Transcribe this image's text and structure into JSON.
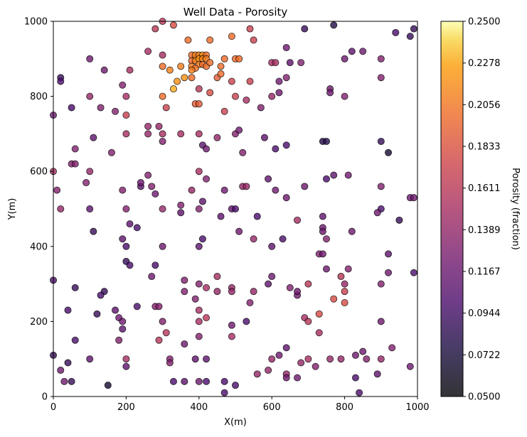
{
  "chart_data": {
    "type": "scatter",
    "title": "Well Data - Porosity",
    "xlabel": "X(m)",
    "ylabel": "Y(m)",
    "xlim": [
      0,
      1000
    ],
    "ylim": [
      0,
      1000
    ],
    "xticks": [
      "0",
      "200",
      "400",
      "600",
      "800",
      "1000"
    ],
    "yticks": [
      "0",
      "200",
      "400",
      "600",
      "800",
      "1000"
    ],
    "grid": false,
    "colormap": "inferno",
    "colorbar": {
      "label": "Porosity (fraction)",
      "range": [
        0.05,
        0.25
      ],
      "ticks": [
        "0.0500",
        "0.0722",
        "0.0944",
        "0.1167",
        "0.1389",
        "0.1611",
        "0.1833",
        "0.2056",
        "0.2278",
        "0.2500"
      ]
    },
    "points_columns": [
      "x",
      "y",
      "porosity"
    ],
    "points": [
      [
        280,
        980,
        0.16
      ],
      [
        300,
        1000,
        0.16
      ],
      [
        330,
        990,
        0.18
      ],
      [
        370,
        950,
        0.2
      ],
      [
        430,
        950,
        0.2
      ],
      [
        490,
        960,
        0.2
      ],
      [
        540,
        980,
        0.17
      ],
      [
        550,
        950,
        0.17
      ],
      [
        650,
        890,
        0.11
      ],
      [
        690,
        980,
        0.09
      ],
      [
        770,
        990,
        0.08
      ],
      [
        820,
        920,
        0.11
      ],
      [
        850,
        920,
        0.12
      ],
      [
        940,
        970,
        0.1
      ],
      [
        980,
        960,
        0.09
      ],
      [
        990,
        980,
        0.09
      ],
      [
        380,
        910,
        0.2
      ],
      [
        390,
        910,
        0.21
      ],
      [
        400,
        910,
        0.21
      ],
      [
        410,
        910,
        0.22
      ],
      [
        420,
        910,
        0.2
      ],
      [
        380,
        895,
        0.2
      ],
      [
        390,
        895,
        0.21
      ],
      [
        400,
        900,
        0.22
      ],
      [
        410,
        900,
        0.21
      ],
      [
        420,
        900,
        0.21
      ],
      [
        380,
        880,
        0.21
      ],
      [
        400,
        885,
        0.21
      ],
      [
        410,
        885,
        0.2
      ],
      [
        420,
        880,
        0.2
      ],
      [
        390,
        875,
        0.2
      ],
      [
        380,
        870,
        0.21
      ],
      [
        430,
        890,
        0.2
      ],
      [
        470,
        900,
        0.2
      ],
      [
        460,
        880,
        0.2
      ],
      [
        500,
        900,
        0.2
      ],
      [
        510,
        900,
        0.2
      ],
      [
        450,
        850,
        0.19
      ],
      [
        460,
        860,
        0.2
      ],
      [
        380,
        850,
        0.2
      ],
      [
        360,
        850,
        0.22
      ],
      [
        340,
        840,
        0.22
      ],
      [
        330,
        820,
        0.23
      ],
      [
        320,
        870,
        0.21
      ],
      [
        300,
        880,
        0.2
      ],
      [
        350,
        880,
        0.21
      ],
      [
        300,
        800,
        0.2
      ],
      [
        310,
        770,
        0.17
      ],
      [
        430,
        810,
        0.18
      ],
      [
        400,
        820,
        0.16
      ],
      [
        390,
        780,
        0.19
      ],
      [
        400,
        780,
        0.19
      ],
      [
        470,
        760,
        0.17
      ],
      [
        490,
        840,
        0.17
      ],
      [
        500,
        800,
        0.17
      ],
      [
        530,
        790,
        0.15
      ],
      [
        540,
        840,
        0.17
      ],
      [
        600,
        890,
        0.15
      ],
      [
        610,
        890,
        0.15
      ],
      [
        620,
        840,
        0.12
      ],
      [
        640,
        850,
        0.13
      ],
      [
        640,
        930,
        0.12
      ],
      [
        600,
        800,
        0.14
      ],
      [
        620,
        810,
        0.12
      ],
      [
        570,
        770,
        0.13
      ],
      [
        680,
        890,
        0.13
      ],
      [
        760,
        820,
        0.12
      ],
      [
        760,
        810,
        0.12
      ],
      [
        800,
        800,
        0.13
      ],
      [
        800,
        900,
        0.12
      ],
      [
        900,
        900,
        0.13
      ],
      [
        900,
        850,
        0.13
      ],
      [
        20,
        850,
        0.09
      ],
      [
        20,
        840,
        0.1
      ],
      [
        50,
        770,
        0.1
      ],
      [
        100,
        900,
        0.12
      ],
      [
        100,
        800,
        0.14
      ],
      [
        130,
        770,
        0.13
      ],
      [
        140,
        870,
        0.12
      ],
      [
        170,
        760,
        0.13
      ],
      [
        190,
        830,
        0.13
      ],
      [
        200,
        800,
        0.15
      ],
      [
        200,
        750,
        0.17
      ],
      [
        210,
        870,
        0.15
      ],
      [
        260,
        920,
        0.15
      ],
      [
        300,
        910,
        0.15
      ],
      [
        0,
        750,
        0.12
      ],
      [
        200,
        700,
        0.15
      ],
      [
        260,
        720,
        0.14
      ],
      [
        260,
        700,
        0.14
      ],
      [
        290,
        720,
        0.14
      ],
      [
        300,
        700,
        0.15
      ],
      [
        300,
        680,
        0.13
      ],
      [
        350,
        700,
        0.15
      ],
      [
        400,
        700,
        0.15
      ],
      [
        410,
        670,
        0.11
      ],
      [
        420,
        660,
        0.12
      ],
      [
        450,
        690,
        0.14
      ],
      [
        500,
        700,
        0.13
      ],
      [
        510,
        710,
        0.12
      ],
      [
        520,
        650,
        0.13
      ],
      [
        640,
        670,
        0.1
      ],
      [
        610,
        660,
        0.1
      ],
      [
        580,
        690,
        0.11
      ],
      [
        740,
        680,
        0.08
      ],
      [
        750,
        680,
        0.08
      ],
      [
        900,
        680,
        0.09
      ],
      [
        920,
        650,
        0.07
      ],
      [
        160,
        650,
        0.13
      ],
      [
        110,
        690,
        0.11
      ],
      [
        60,
        660,
        0.13
      ],
      [
        50,
        620,
        0.13
      ],
      [
        60,
        620,
        0.13
      ],
      [
        100,
        600,
        0.14
      ],
      [
        0,
        600,
        0.15
      ],
      [
        10,
        550,
        0.13
      ],
      [
        20,
        500,
        0.14
      ],
      [
        90,
        570,
        0.13
      ],
      [
        100,
        500,
        0.11
      ],
      [
        190,
        550,
        0.13
      ],
      [
        200,
        500,
        0.13
      ],
      [
        240,
        560,
        0.11
      ],
      [
        240,
        570,
        0.12
      ],
      [
        260,
        590,
        0.13
      ],
      [
        270,
        560,
        0.13
      ],
      [
        280,
        540,
        0.12
      ],
      [
        300,
        500,
        0.14
      ],
      [
        350,
        510,
        0.13
      ],
      [
        350,
        490,
        0.11
      ],
      [
        380,
        550,
        0.14
      ],
      [
        400,
        600,
        0.15
      ],
      [
        400,
        500,
        0.13
      ],
      [
        410,
        520,
        0.11
      ],
      [
        420,
        580,
        0.13
      ],
      [
        470,
        550,
        0.12
      ],
      [
        460,
        480,
        0.11
      ],
      [
        490,
        500,
        0.11
      ],
      [
        500,
        500,
        0.1
      ],
      [
        520,
        560,
        0.14
      ],
      [
        530,
        560,
        0.14
      ],
      [
        560,
        480,
        0.1
      ],
      [
        590,
        580,
        0.11
      ],
      [
        610,
        550,
        0.12
      ],
      [
        640,
        530,
        0.12
      ],
      [
        690,
        560,
        0.12
      ],
      [
        750,
        580,
        0.1
      ],
      [
        770,
        590,
        0.11
      ],
      [
        810,
        590,
        0.12
      ],
      [
        900,
        560,
        0.13
      ],
      [
        900,
        500,
        0.1
      ],
      [
        890,
        490,
        0.12
      ],
      [
        950,
        470,
        0.09
      ],
      [
        980,
        530,
        0.12
      ],
      [
        990,
        530,
        0.12
      ],
      [
        820,
        440,
        0.12
      ],
      [
        740,
        480,
        0.11
      ],
      [
        740,
        450,
        0.12
      ],
      [
        740,
        440,
        0.12
      ],
      [
        750,
        420,
        0.13
      ],
      [
        670,
        470,
        0.15
      ],
      [
        730,
        380,
        0.13
      ],
      [
        740,
        380,
        0.12
      ],
      [
        630,
        420,
        0.1
      ],
      [
        550,
        420,
        0.14
      ],
      [
        510,
        440,
        0.12
      ],
      [
        410,
        420,
        0.1
      ],
      [
        400,
        400,
        0.11
      ],
      [
        200,
        360,
        0.09
      ],
      [
        210,
        350,
        0.1
      ],
      [
        200,
        400,
        0.1
      ],
      [
        190,
        420,
        0.11
      ],
      [
        210,
        460,
        0.11
      ],
      [
        230,
        450,
        0.1
      ],
      [
        110,
        440,
        0.09
      ],
      [
        300,
        400,
        0.12
      ],
      [
        270,
        320,
        0.12
      ],
      [
        280,
        350,
        0.1
      ],
      [
        0,
        310,
        0.1
      ],
      [
        60,
        290,
        0.09
      ],
      [
        140,
        280,
        0.09
      ],
      [
        130,
        270,
        0.1
      ],
      [
        170,
        230,
        0.11
      ],
      [
        40,
        230,
        0.1
      ],
      [
        120,
        220,
        0.09
      ],
      [
        180,
        210,
        0.12
      ],
      [
        190,
        200,
        0.12
      ],
      [
        190,
        180,
        0.11
      ],
      [
        180,
        150,
        0.13
      ],
      [
        60,
        150,
        0.1
      ],
      [
        100,
        100,
        0.11
      ],
      [
        200,
        100,
        0.15
      ],
      [
        200,
        80,
        0.11
      ],
      [
        0,
        110,
        0.09
      ],
      [
        20,
        70,
        0.12
      ],
      [
        30,
        40,
        0.12
      ],
      [
        40,
        90,
        0.09
      ],
      [
        50,
        40,
        0.09
      ],
      [
        150,
        30,
        0.07
      ],
      [
        230,
        240,
        0.1
      ],
      [
        280,
        240,
        0.13
      ],
      [
        290,
        240,
        0.13
      ],
      [
        300,
        200,
        0.13
      ],
      [
        290,
        150,
        0.16
      ],
      [
        310,
        170,
        0.16
      ],
      [
        320,
        100,
        0.13
      ],
      [
        320,
        90,
        0.13
      ],
      [
        330,
        40,
        0.1
      ],
      [
        360,
        140,
        0.12
      ],
      [
        360,
        40,
        0.11
      ],
      [
        390,
        100,
        0.11
      ],
      [
        400,
        300,
        0.13
      ],
      [
        400,
        200,
        0.15
      ],
      [
        400,
        230,
        0.15
      ],
      [
        400,
        160,
        0.13
      ],
      [
        420,
        210,
        0.16
      ],
      [
        420,
        290,
        0.15
      ],
      [
        360,
        310,
        0.13
      ],
      [
        360,
        280,
        0.13
      ],
      [
        390,
        260,
        0.13
      ],
      [
        450,
        320,
        0.15
      ],
      [
        450,
        280,
        0.14
      ],
      [
        490,
        290,
        0.14
      ],
      [
        490,
        280,
        0.14
      ],
      [
        490,
        190,
        0.12
      ],
      [
        490,
        160,
        0.15
      ],
      [
        530,
        200,
        0.1
      ],
      [
        540,
        250,
        0.13
      ],
      [
        550,
        280,
        0.14
      ],
      [
        470,
        40,
        0.1
      ],
      [
        470,
        10,
        0.1
      ],
      [
        500,
        30,
        0.1
      ],
      [
        420,
        40,
        0.1
      ],
      [
        420,
        100,
        0.11
      ],
      [
        400,
        40,
        0.12
      ],
      [
        560,
        60,
        0.14
      ],
      [
        590,
        70,
        0.14
      ],
      [
        600,
        100,
        0.14
      ],
      [
        620,
        110,
        0.12
      ],
      [
        640,
        130,
        0.11
      ],
      [
        640,
        60,
        0.14
      ],
      [
        640,
        50,
        0.12
      ],
      [
        670,
        50,
        0.12
      ],
      [
        680,
        90,
        0.14
      ],
      [
        700,
        100,
        0.15
      ],
      [
        720,
        80,
        0.13
      ],
      [
        760,
        100,
        0.14
      ],
      [
        790,
        100,
        0.14
      ],
      [
        830,
        110,
        0.12
      ],
      [
        830,
        50,
        0.1
      ],
      [
        840,
        10,
        0.1
      ],
      [
        850,
        120,
        0.12
      ],
      [
        860,
        100,
        0.13
      ],
      [
        890,
        60,
        0.11
      ],
      [
        900,
        100,
        0.14
      ],
      [
        930,
        130,
        0.13
      ],
      [
        980,
        80,
        0.12
      ],
      [
        670,
        270,
        0.12
      ],
      [
        670,
        280,
        0.12
      ],
      [
        650,
        290,
        0.13
      ],
      [
        690,
        210,
        0.15
      ],
      [
        700,
        200,
        0.16
      ],
      [
        700,
        300,
        0.16
      ],
      [
        730,
        220,
        0.18
      ],
      [
        730,
        170,
        0.15
      ],
      [
        750,
        340,
        0.12
      ],
      [
        770,
        260,
        0.18
      ],
      [
        790,
        320,
        0.16
      ],
      [
        800,
        300,
        0.14
      ],
      [
        800,
        280,
        0.17
      ],
      [
        800,
        250,
        0.18
      ],
      [
        810,
        340,
        0.13
      ],
      [
        590,
        300,
        0.11
      ],
      [
        600,
        320,
        0.12
      ],
      [
        600,
        400,
        0.11
      ],
      [
        900,
        300,
        0.13
      ],
      [
        900,
        200,
        0.12
      ],
      [
        920,
        330,
        0.12
      ],
      [
        920,
        380,
        0.11
      ],
      [
        990,
        330,
        0.1
      ]
    ]
  }
}
